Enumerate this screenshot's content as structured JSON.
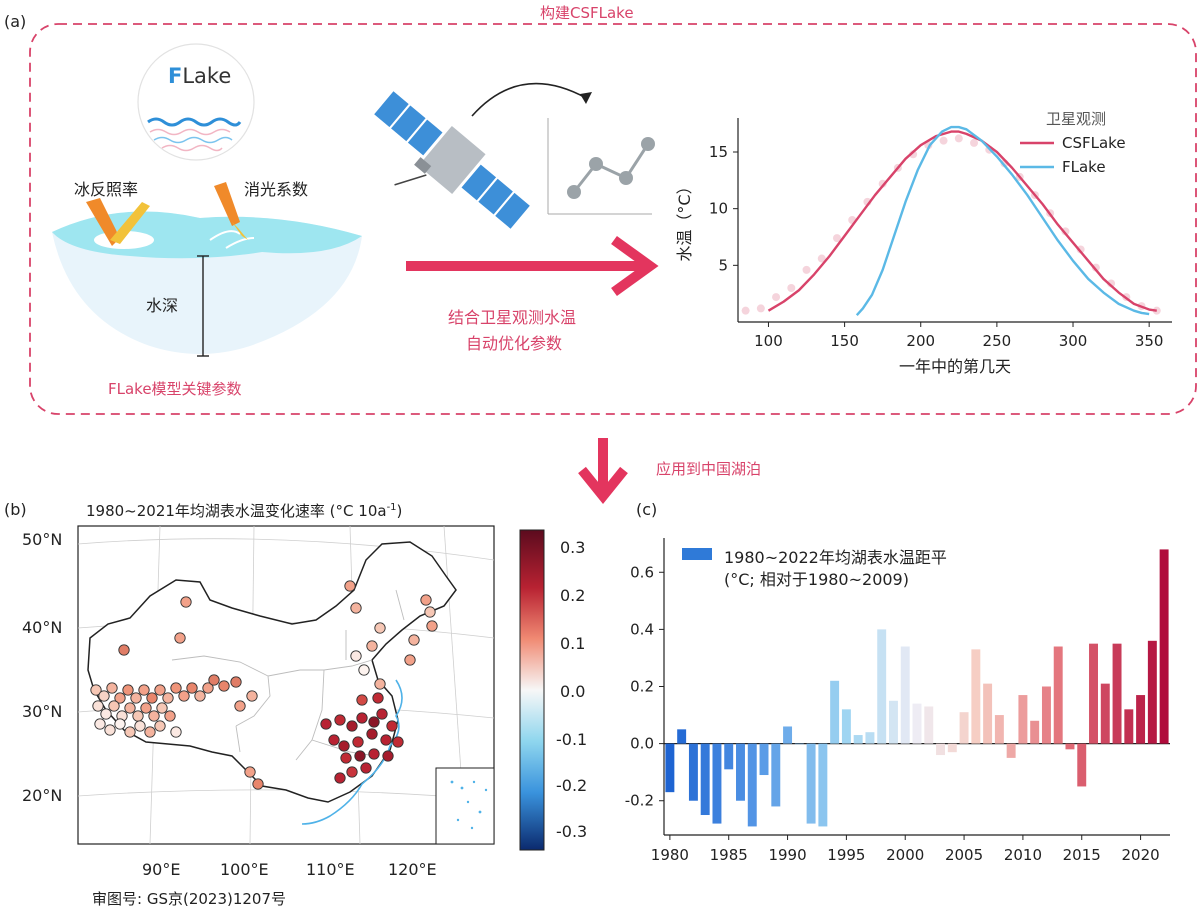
{
  "panel_a": {
    "label": "(a)",
    "title": "构建CSFLake",
    "fig_logo": {
      "bold": "F",
      "rest": "Lake"
    },
    "ice_albedo": "冰反照率",
    "extinction": "消光系数",
    "depth": "水深",
    "key_params": "FLake模型关键参数",
    "arrow_text_1": "结合卫星观测水温",
    "arrow_text_2": "自动优化参数",
    "chart_data": {
      "type": "line",
      "xlabel": "一年中的第几天",
      "ylabel": "水温（°C）",
      "xlim": [
        80,
        365
      ],
      "ylim": [
        0,
        18
      ],
      "xticks": [
        100,
        150,
        200,
        250,
        300,
        350
      ],
      "yticks": [
        5,
        10,
        15
      ],
      "legend": [
        "卫星观测",
        "CSFLake",
        "FLake"
      ],
      "legend_position": "top-right",
      "series": [
        {
          "name": "卫星观测",
          "color": "#f3c9d3",
          "x": [
            85,
            95,
            105,
            115,
            125,
            135,
            145,
            155,
            165,
            175,
            185,
            195,
            205,
            215,
            225,
            235,
            245,
            255,
            265,
            275,
            285,
            295,
            305,
            315,
            325,
            335,
            345,
            355
          ],
          "y": [
            1.0,
            1.2,
            2.2,
            3.0,
            4.6,
            5.6,
            7.4,
            9.0,
            10.6,
            12.2,
            13.6,
            14.8,
            15.6,
            16.0,
            16.2,
            15.8,
            15.2,
            14.0,
            12.8,
            11.2,
            9.6,
            8.0,
            6.4,
            4.8,
            3.4,
            2.2,
            1.4,
            1.0
          ]
        },
        {
          "name": "CSFLake",
          "color": "#d8436a",
          "x": [
            100,
            110,
            120,
            130,
            140,
            150,
            160,
            170,
            180,
            190,
            200,
            210,
            220,
            225,
            230,
            240,
            250,
            260,
            270,
            280,
            290,
            300,
            310,
            320,
            330,
            340,
            350,
            355
          ],
          "y": [
            1.0,
            1.8,
            2.8,
            4.2,
            5.8,
            7.6,
            9.4,
            11.2,
            12.8,
            14.4,
            15.6,
            16.4,
            16.8,
            16.8,
            16.6,
            16.0,
            15.0,
            13.6,
            12.0,
            10.4,
            8.6,
            7.0,
            5.4,
            3.8,
            2.6,
            1.6,
            1.1,
            1.0
          ]
        },
        {
          "name": "FLake",
          "color": "#5bb9e6",
          "x": [
            158,
            162,
            168,
            175,
            182,
            190,
            198,
            206,
            214,
            220,
            225,
            230,
            240,
            250,
            260,
            270,
            280,
            290,
            300,
            310,
            320,
            330,
            340,
            345,
            350
          ],
          "y": [
            0.6,
            1.2,
            2.4,
            4.6,
            7.4,
            10.6,
            13.4,
            15.6,
            16.8,
            17.2,
            17.2,
            17.0,
            16.0,
            14.6,
            13.0,
            11.2,
            9.2,
            7.2,
            5.4,
            3.8,
            2.6,
            1.6,
            1.0,
            0.8,
            0.7
          ]
        }
      ]
    }
  },
  "apply_label": "应用到中国湖泊",
  "panel_b": {
    "label": "(b)",
    "title": "1980~2021年均湖表水温变化速率 (°C 10a",
    "title_sup": "-1",
    "title_close": ")",
    "lat_labels": [
      "50°N",
      "40°N",
      "30°N",
      "20°N"
    ],
    "lon_labels": [
      "90°E",
      "100°E",
      "110°E",
      "120°E"
    ],
    "colorbar_ticks": [
      "0.3",
      "0.2",
      "0.1",
      "0.0",
      "-0.1",
      "-0.2",
      "-0.3"
    ],
    "map_number": "审图号: GS京(2023)1207号"
  },
  "panel_c": {
    "label": "(c)",
    "legend_line1": "1980~2022年均湖表水温距平",
    "legend_line2": "(°C; 相对于1980~2009)",
    "chart_data": {
      "type": "bar",
      "x": [
        1980,
        1981,
        1982,
        1983,
        1984,
        1985,
        1986,
        1987,
        1988,
        1989,
        1990,
        1991,
        1992,
        1993,
        1994,
        1995,
        1996,
        1997,
        1998,
        1999,
        2000,
        2001,
        2002,
        2003,
        2004,
        2005,
        2006,
        2007,
        2008,
        2009,
        2010,
        2011,
        2012,
        2013,
        2014,
        2015,
        2016,
        2017,
        2018,
        2019,
        2020,
        2021,
        2022
      ],
      "values": [
        -0.17,
        0.05,
        -0.2,
        -0.25,
        -0.28,
        -0.09,
        -0.2,
        -0.29,
        -0.11,
        -0.22,
        0.06,
        0.0,
        -0.28,
        -0.29,
        0.22,
        0.12,
        0.03,
        0.04,
        0.4,
        0.15,
        0.34,
        0.14,
        0.13,
        -0.04,
        -0.03,
        0.11,
        0.33,
        0.21,
        0.1,
        -0.05,
        0.17,
        0.08,
        0.2,
        0.34,
        -0.02,
        -0.15,
        0.35,
        0.21,
        0.35,
        0.12,
        0.17,
        0.36,
        0.68
      ],
      "ylim": [
        -0.32,
        0.72
      ],
      "yticks": [
        "-0.2",
        "0.0",
        "0.2",
        "0.4",
        "0.6"
      ],
      "xticks": [
        "1980",
        "1985",
        "1990",
        "1995",
        "2000",
        "2005",
        "2010",
        "2015",
        "2020"
      ]
    }
  }
}
